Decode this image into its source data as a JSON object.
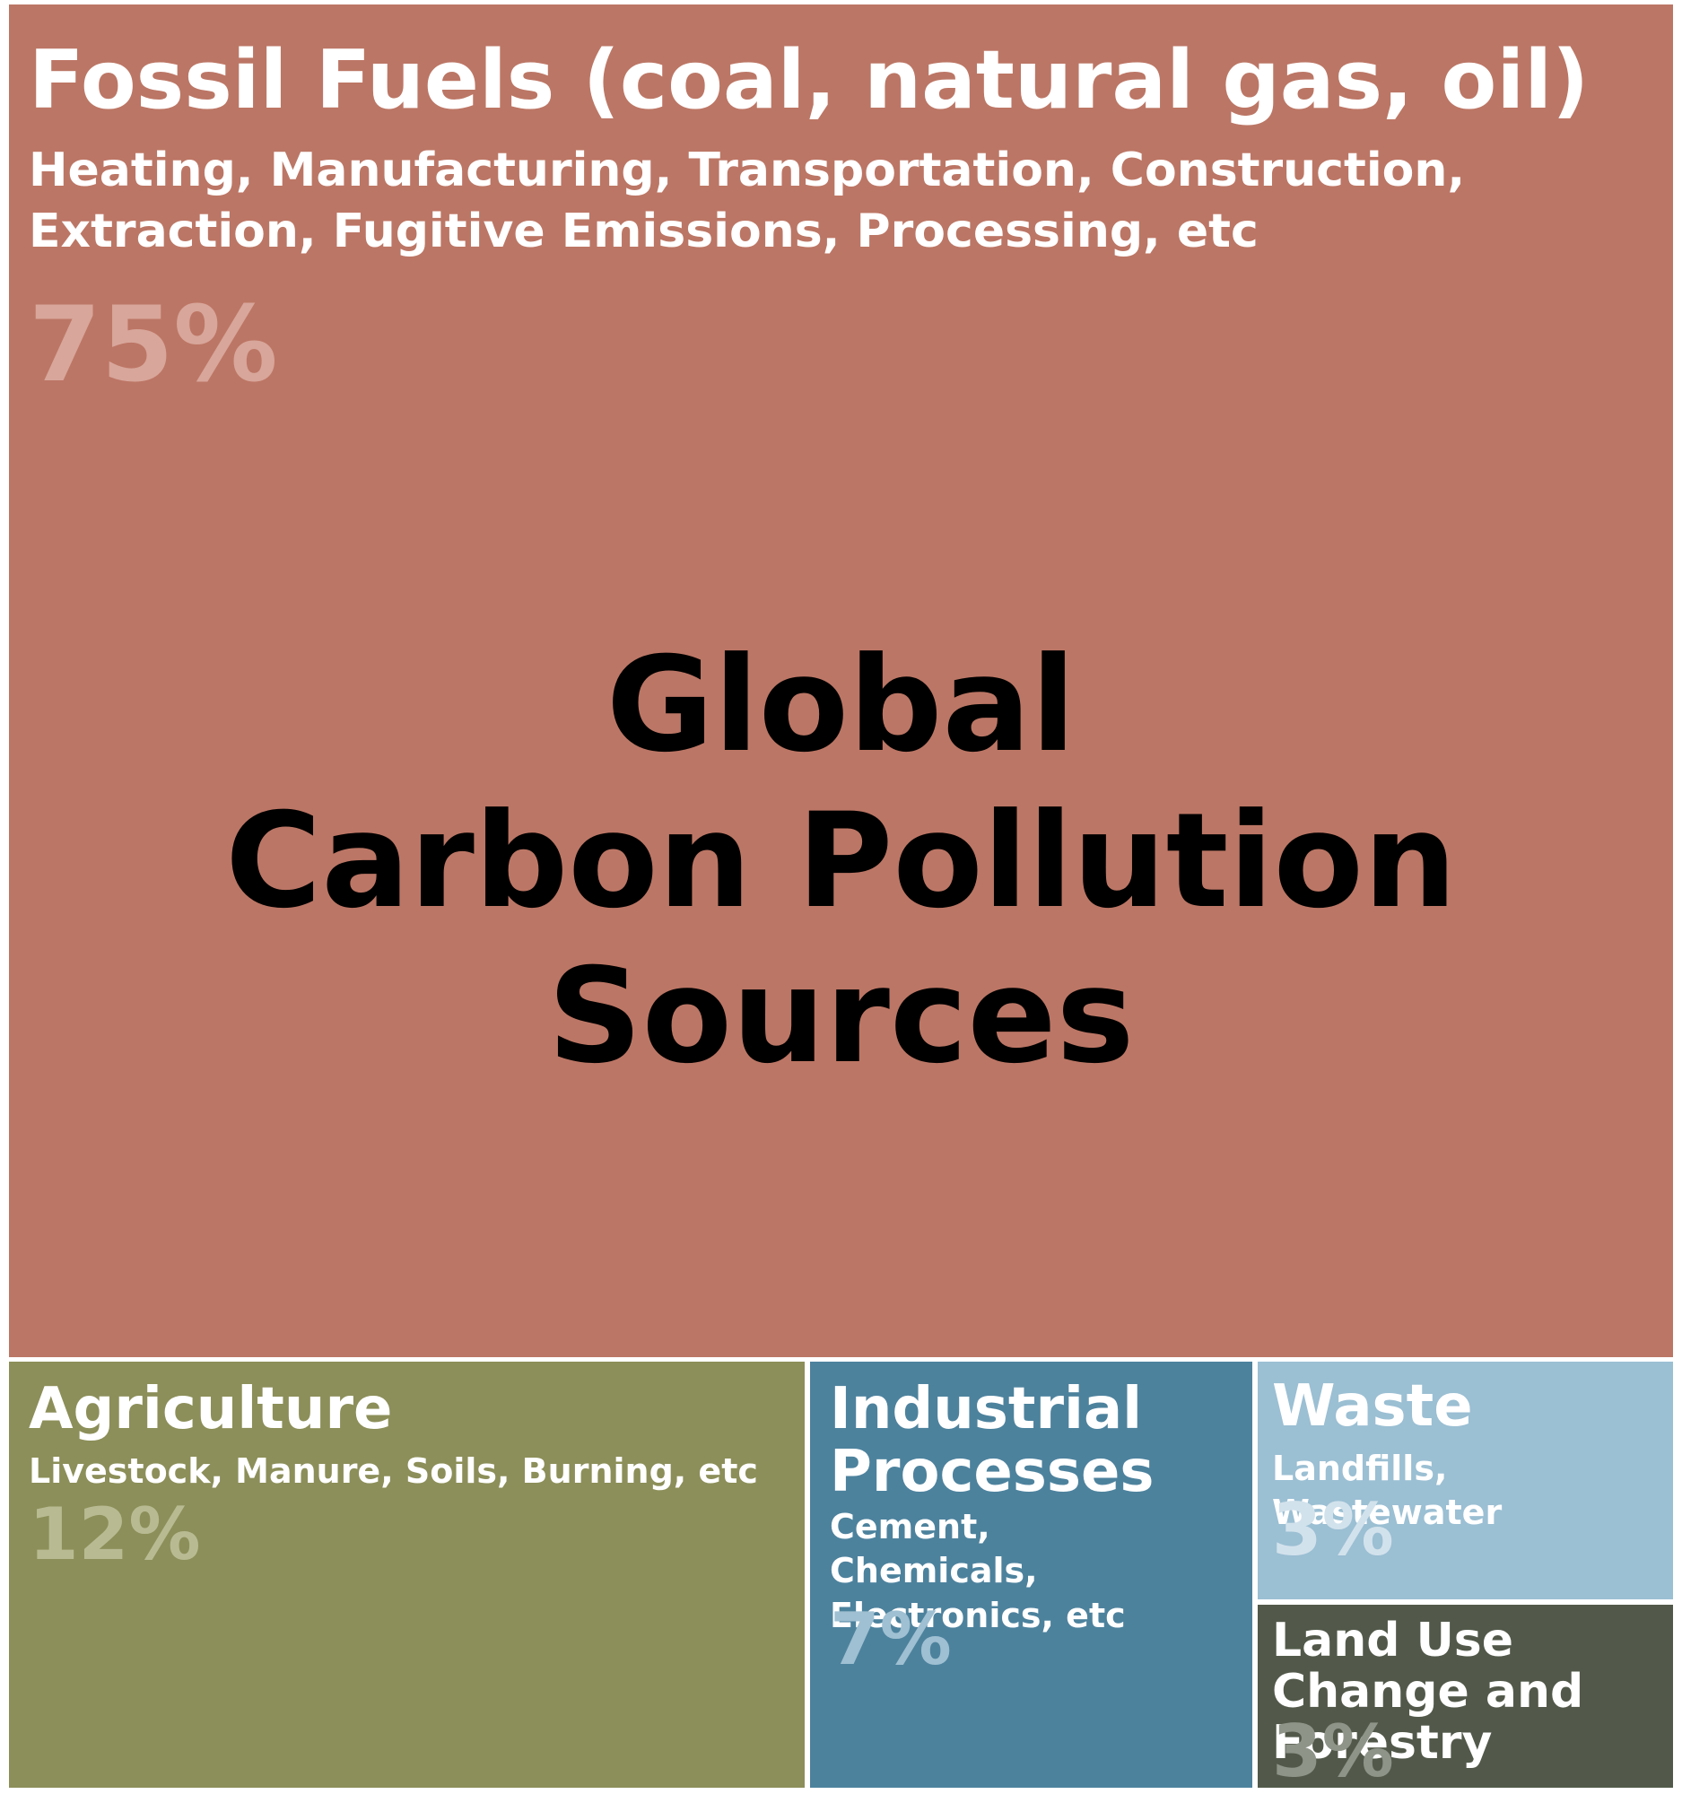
{
  "chart_data": {
    "type": "treemap",
    "title": "Global\nCarbon Pollution\nSources",
    "unit": "%",
    "categories": [
      {
        "name": "Fossil Fuels (coal, natural gas, oil)",
        "description": "Heating, Manufacturing, Transportation, Construction, Extraction, Fugitive Emissions, Processing, etc",
        "value": 75,
        "label": "75%",
        "color": "#bc7665"
      },
      {
        "name": "Agriculture",
        "description": "Livestock, Manure, Soils, Burning, etc",
        "value": 12,
        "label": "12%",
        "color": "#8c8f59"
      },
      {
        "name": "Industrial Processes",
        "description": "Cement, Chemicals, Electronics, etc",
        "value": 7,
        "label": "7%",
        "color": "#4d829d"
      },
      {
        "name": "Waste",
        "description": "Landfills, Wastewater",
        "value": 3,
        "label": "3%",
        "color": "#9bbfd3"
      },
      {
        "name": "Land Use Change and Forestry",
        "description": "",
        "value": 3,
        "label": "3%",
        "color": "#52594a"
      }
    ]
  }
}
